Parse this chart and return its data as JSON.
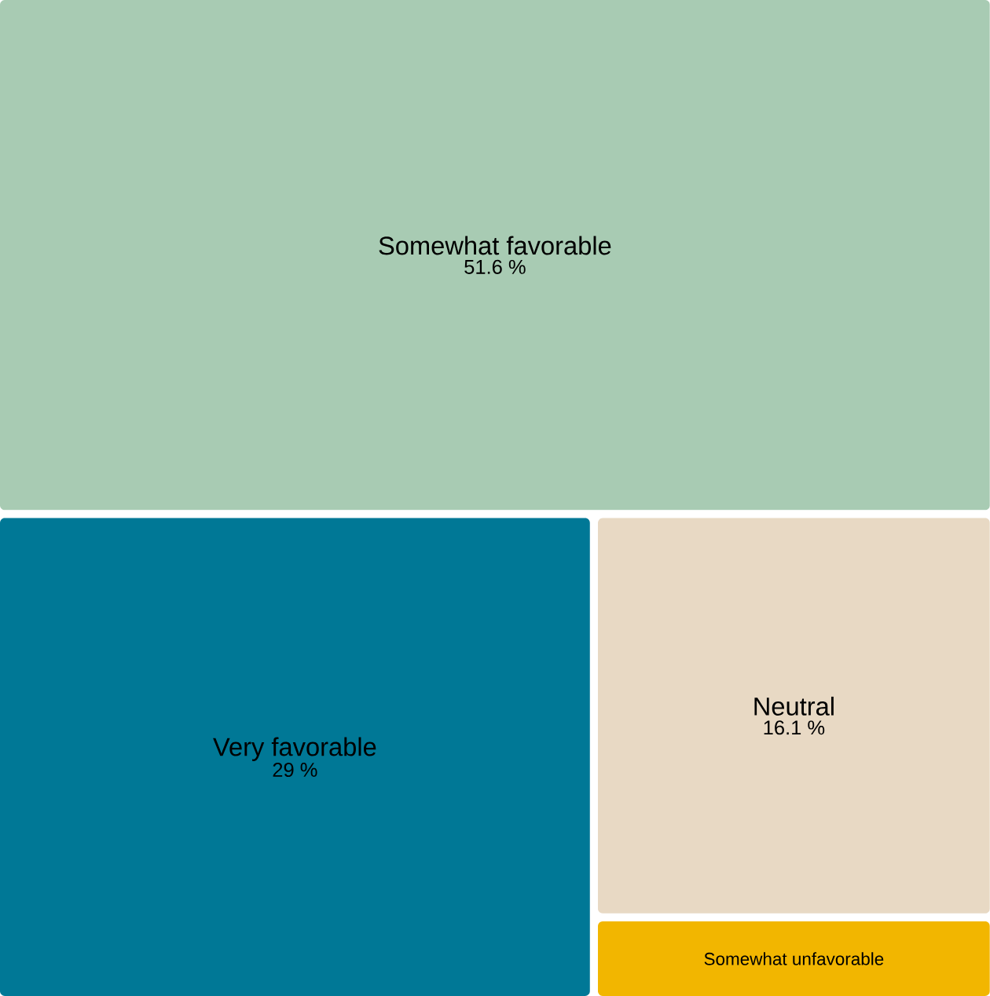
{
  "chart_data": {
    "type": "other",
    "categories": [
      "Somewhat favorable",
      "Very favorable",
      "Neutral",
      "Somewhat unfavorable"
    ],
    "values": [
      51.6,
      29,
      16.1,
      null
    ],
    "colors": [
      "#a8cbb3",
      "#007896",
      "#e8d9c4",
      "#f2b600"
    ],
    "value_labels": [
      "51.6 %",
      "29 %",
      "16.1 %",
      null
    ]
  }
}
